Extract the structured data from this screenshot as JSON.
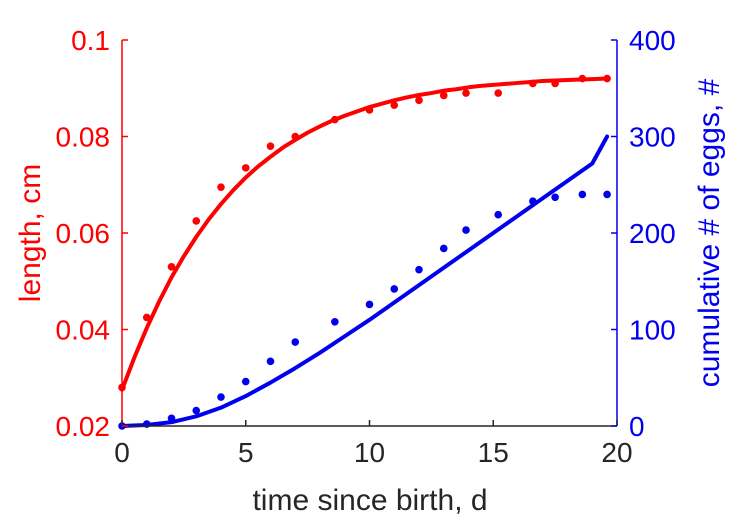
{
  "chart_data": {
    "type": "line",
    "title": "",
    "xlabel": "time since birth, d",
    "ylabel_left": "length, cm",
    "ylabel_right": "cumulative # of eggs, #",
    "xlim": [
      0,
      20
    ],
    "ylim_left": [
      0.02,
      0.1
    ],
    "ylim_right": [
      0,
      400
    ],
    "x_ticks": [
      "0",
      "5",
      "10",
      "15",
      "20"
    ],
    "y_ticks_left": [
      "0.02",
      "0.04",
      "0.06",
      "0.08",
      "0.1"
    ],
    "y_ticks_right": [
      "0",
      "100",
      "200",
      "300",
      "400"
    ],
    "grid": false,
    "colors": {
      "left": "#ff0000",
      "right": "#0000ee",
      "axis": "#262626"
    },
    "series": [
      {
        "axis": "left",
        "kind": "line",
        "color": "#ff0000",
        "x": [
          0,
          0.5,
          1,
          1.5,
          2,
          2.5,
          3,
          3.5,
          4,
          4.5,
          5,
          5.5,
          6,
          6.5,
          7,
          7.5,
          8,
          8.5,
          9,
          9.5,
          10,
          10.5,
          11,
          11.5,
          12,
          12.5,
          13,
          13.5,
          14,
          14.5,
          15,
          15.5,
          16,
          16.5,
          17,
          17.5,
          18,
          18.5,
          19,
          19.5
        ],
        "y": [
          0.0275,
          0.0342,
          0.0403,
          0.0458,
          0.0508,
          0.0552,
          0.0592,
          0.0628,
          0.066,
          0.0689,
          0.0715,
          0.0738,
          0.0758,
          0.0777,
          0.0793,
          0.0808,
          0.0821,
          0.0833,
          0.0843,
          0.0852,
          0.0861,
          0.0868,
          0.0875,
          0.0881,
          0.0886,
          0.089,
          0.0895,
          0.0898,
          0.0902,
          0.0905,
          0.0907,
          0.0909,
          0.0911,
          0.0913,
          0.0915,
          0.0916,
          0.0917,
          0.0918,
          0.0919,
          0.092
        ]
      },
      {
        "axis": "left",
        "kind": "scatter",
        "color": "#ff0000",
        "x": [
          0,
          1,
          2,
          3,
          4,
          5,
          6,
          7,
          8.6,
          10,
          11,
          12,
          13,
          13.9,
          15.2,
          16.6,
          17.5,
          18.6,
          19.6
        ],
        "y": [
          0.028,
          0.0425,
          0.053,
          0.0625,
          0.0695,
          0.0735,
          0.078,
          0.08,
          0.0835,
          0.0855,
          0.0865,
          0.0875,
          0.0885,
          0.089,
          0.089,
          0.091,
          0.091,
          0.092,
          0.092
        ]
      },
      {
        "axis": "right",
        "kind": "line",
        "color": "#0000ee",
        "x": [
          0,
          1,
          2,
          3,
          4,
          5,
          6,
          7,
          8,
          9,
          10,
          11,
          12,
          13,
          14,
          15,
          16,
          17,
          18,
          19,
          19.6
        ],
        "y": [
          0,
          1,
          4,
          10,
          19,
          31,
          45,
          60,
          76,
          93,
          110,
          128,
          146,
          164,
          182,
          200,
          218,
          236,
          254,
          272,
          300
        ]
      },
      {
        "axis": "right",
        "kind": "scatter",
        "color": "#0000ee",
        "x": [
          0,
          1,
          2,
          3,
          4,
          5,
          6,
          7,
          8.6,
          10,
          11,
          12,
          13,
          13.9,
          15.2,
          16.6,
          17.5,
          18.6,
          19.6
        ],
        "y": [
          0,
          2,
          8,
          16,
          30,
          46,
          67,
          87,
          108,
          126,
          142,
          162,
          184,
          203,
          219,
          233,
          237,
          240,
          240
        ]
      }
    ]
  }
}
